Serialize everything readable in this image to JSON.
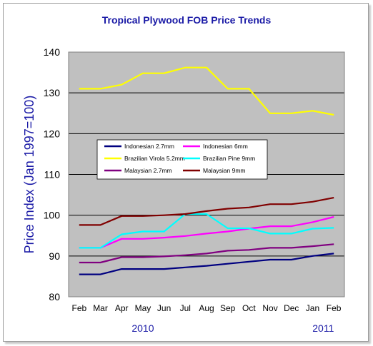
{
  "chart_data": {
    "type": "line",
    "title": "Tropical Plywood FOB Price Trends",
    "ylabel": "Price Index (Jan 1997=100)",
    "xlabel": "",
    "ylim": [
      80,
      140
    ],
    "yticks": [
      "80",
      "90",
      "100",
      "110",
      "120",
      "130",
      "140"
    ],
    "categories": [
      "Feb",
      "Mar",
      "Apr",
      "May",
      "Jun",
      "Jul",
      "Aug",
      "Sep",
      "Oct",
      "Nov",
      "Dec",
      "Jan",
      "Feb"
    ],
    "year_labels": [
      {
        "label": "2010",
        "at_category": 3
      },
      {
        "label": "2011",
        "at_category": 11.5
      }
    ],
    "grid": "horizontal",
    "legend": "inside-center",
    "series": [
      {
        "name": "Indonesian 2.7mm",
        "color": "#000080",
        "values": [
          85.5,
          85.5,
          86.8,
          86.8,
          86.8,
          87.2,
          87.6,
          88.1,
          88.6,
          89.1,
          89.1,
          90.0,
          90.6
        ]
      },
      {
        "name": "Indonesian 6mm",
        "color": "#ff00ff",
        "values": [
          92.0,
          92.0,
          94.2,
          94.2,
          94.5,
          94.9,
          95.5,
          96.0,
          96.7,
          97.3,
          97.3,
          98.3,
          99.6
        ]
      },
      {
        "name": "Brazilian Virola 5.2mm",
        "color": "#ffff00",
        "values": [
          131.0,
          131.0,
          132.0,
          134.8,
          134.8,
          136.2,
          136.2,
          131.0,
          131.0,
          125.0,
          125.0,
          125.6,
          124.6
        ]
      },
      {
        "name": "Brazilian Pine 9mm",
        "color": "#00ffff",
        "values": [
          92.0,
          92.0,
          95.3,
          96.0,
          96.0,
          100.3,
          100.3,
          96.8,
          96.8,
          95.5,
          95.5,
          96.7,
          96.9
        ]
      },
      {
        "name": "Malaysian 2.7mm",
        "color": "#800080",
        "values": [
          88.4,
          88.4,
          89.7,
          89.7,
          89.9,
          90.2,
          90.6,
          91.3,
          91.5,
          92.0,
          92.0,
          92.4,
          92.9
        ]
      },
      {
        "name": "Malaysian 9mm",
        "color": "#800000",
        "values": [
          97.6,
          97.6,
          99.8,
          99.8,
          100.0,
          100.3,
          101.0,
          101.6,
          101.9,
          102.7,
          102.7,
          103.3,
          104.3
        ]
      }
    ]
  }
}
